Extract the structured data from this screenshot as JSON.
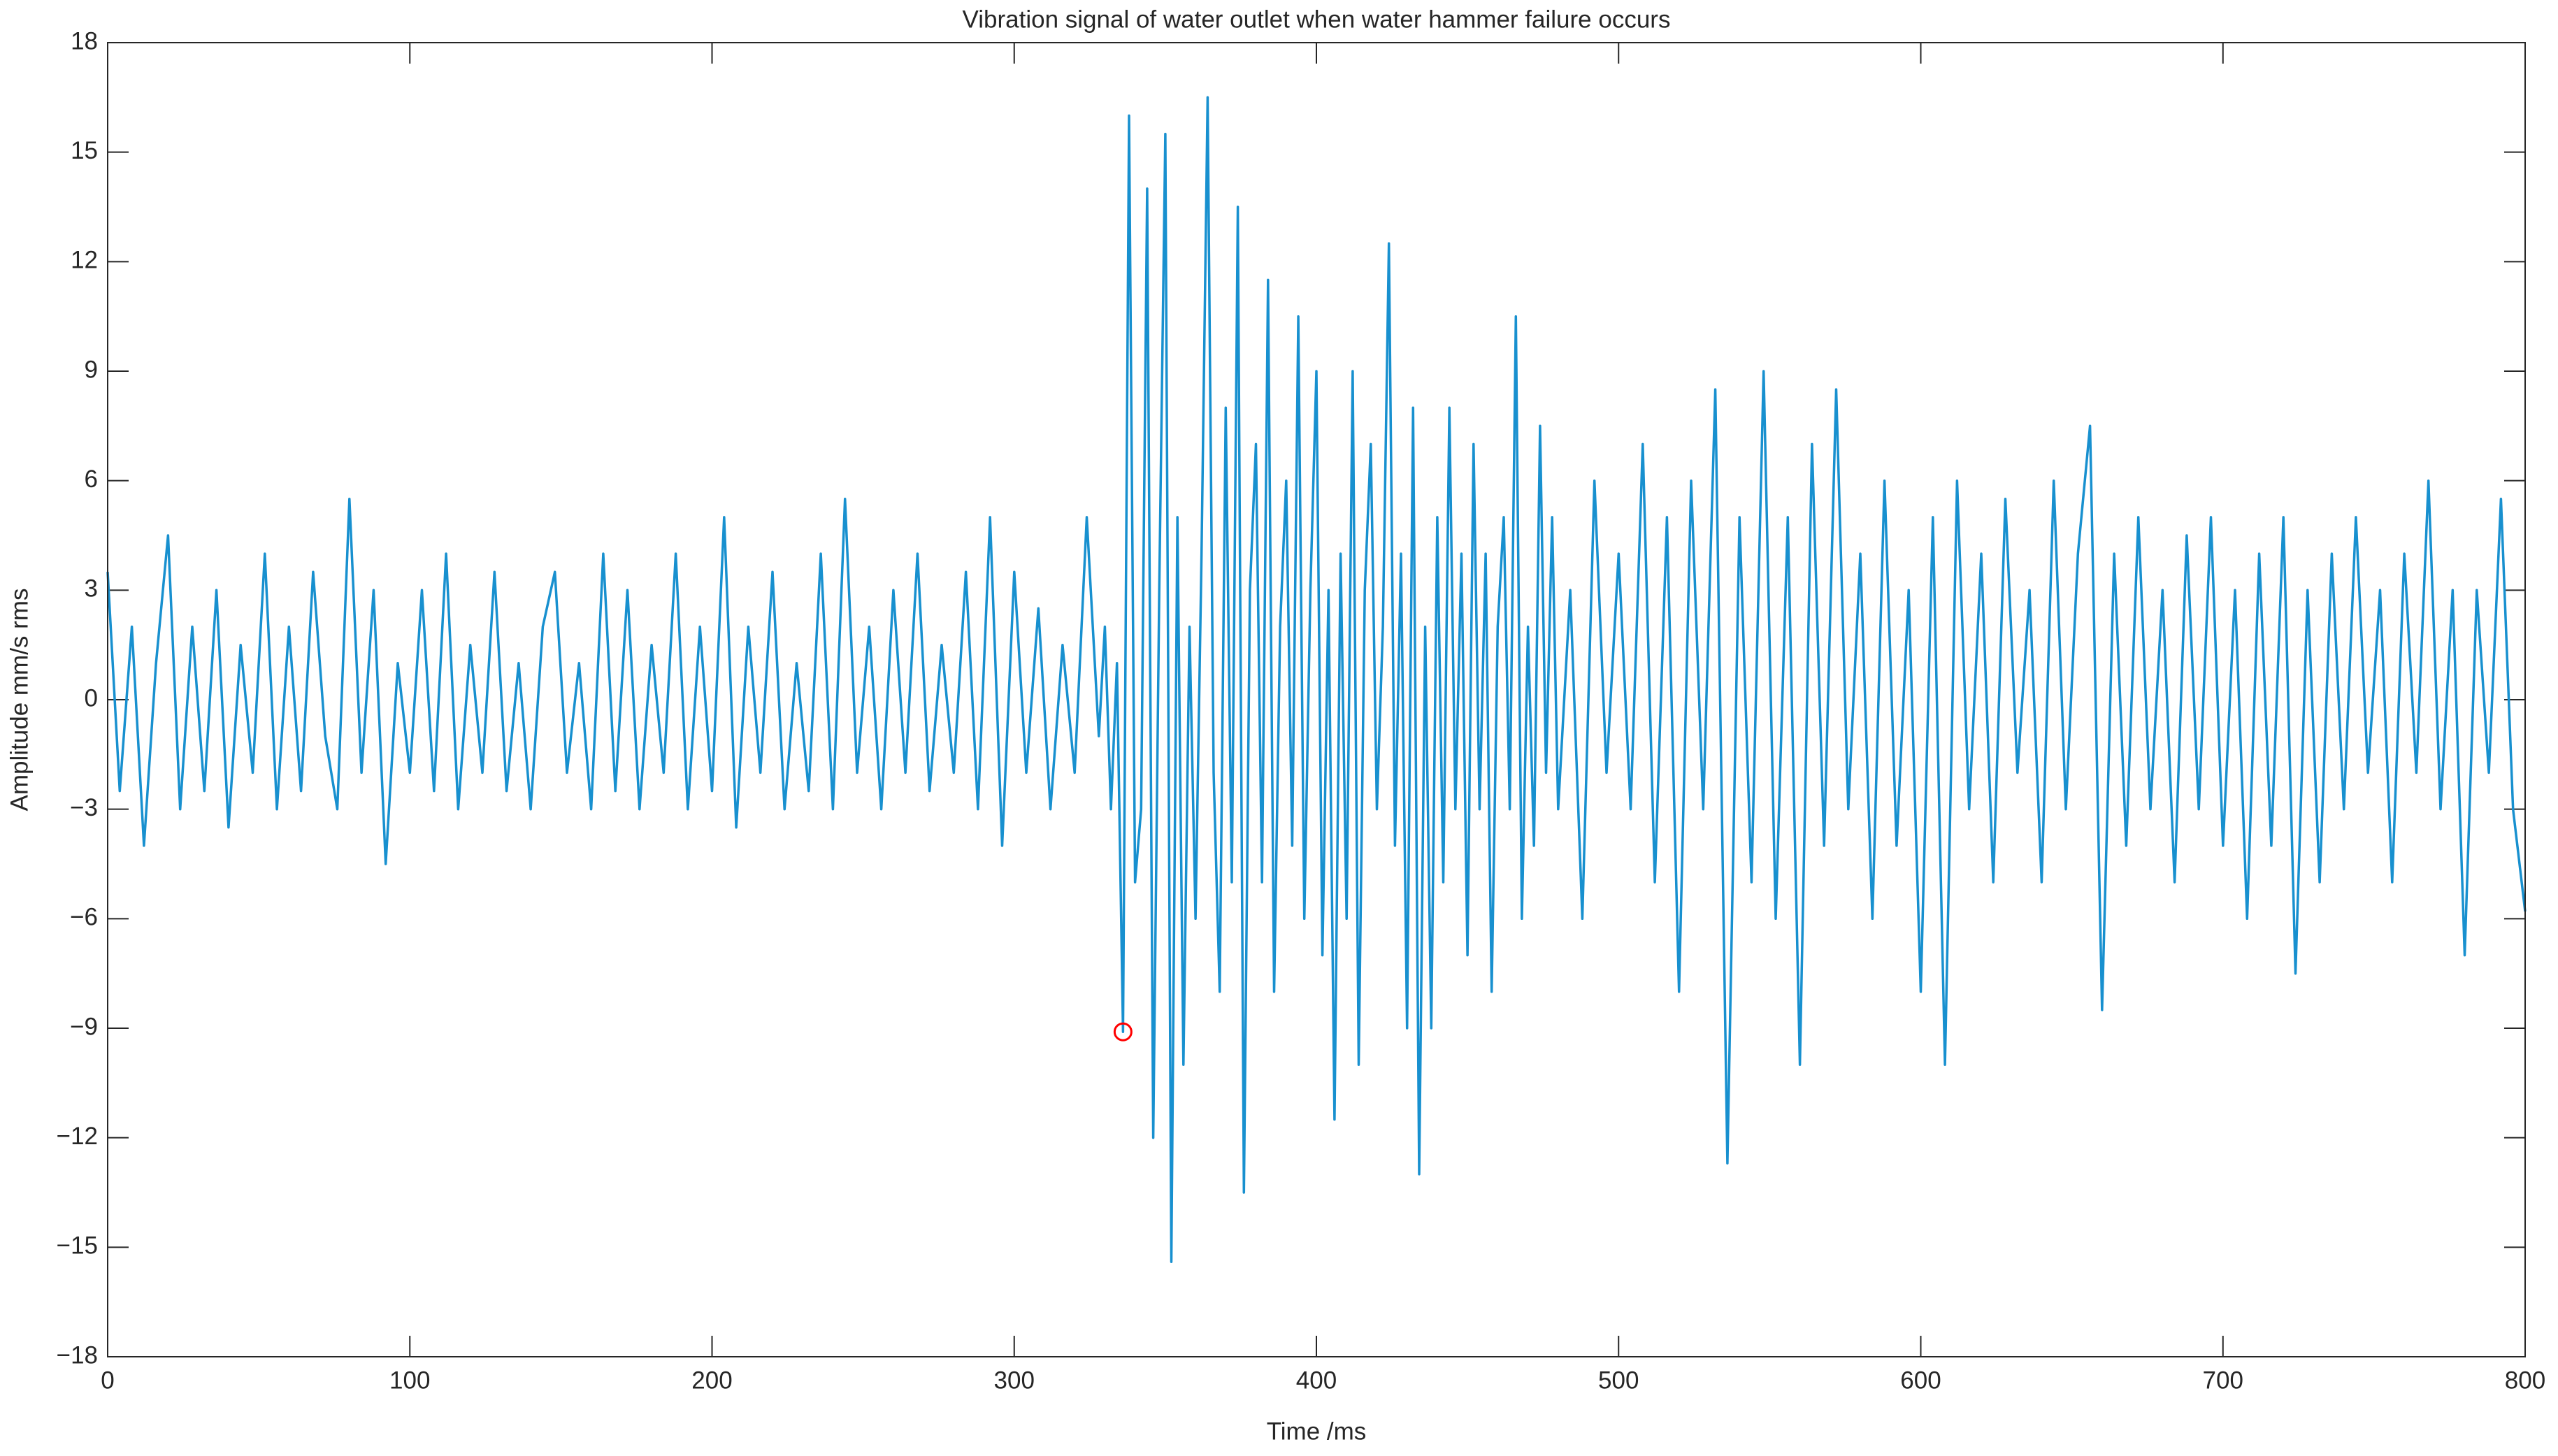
{
  "chart_data": {
    "type": "line",
    "title": "Vibration signal of water outlet when water hammer failure occurs",
    "xlabel": "Time /ms",
    "ylabel": "Amplitude mm/s rms",
    "xlim": [
      0,
      800
    ],
    "ylim": [
      -18,
      18
    ],
    "xticks": [
      0,
      100,
      200,
      300,
      400,
      500,
      600,
      700,
      800
    ],
    "yticks": [
      {
        "value": -18,
        "label": "−18"
      },
      {
        "value": -15,
        "label": "−15"
      },
      {
        "value": -12,
        "label": "−12"
      },
      {
        "value": -9,
        "label": "−9"
      },
      {
        "value": -6,
        "label": "−6"
      },
      {
        "value": -3,
        "label": "−3"
      },
      0,
      3,
      6,
      9,
      12,
      15,
      18
    ],
    "grid": false,
    "x": [
      0,
      4,
      8,
      12,
      16,
      20,
      24,
      28,
      32,
      36,
      40,
      44,
      48,
      52,
      56,
      60,
      64,
      68,
      72,
      76,
      80,
      84,
      88,
      92,
      96,
      100,
      104,
      108,
      112,
      116,
      120,
      124,
      128,
      132,
      136,
      140,
      144,
      148,
      152,
      156,
      160,
      164,
      168,
      172,
      176,
      180,
      184,
      188,
      192,
      196,
      200,
      204,
      208,
      212,
      216,
      220,
      224,
      228,
      232,
      236,
      240,
      244,
      248,
      252,
      256,
      260,
      264,
      268,
      272,
      276,
      280,
      284,
      288,
      292,
      296,
      300,
      304,
      308,
      312,
      316,
      320,
      324,
      328,
      330,
      332,
      334,
      336,
      338,
      340,
      342,
      344,
      346,
      348,
      350,
      352,
      354,
      356,
      358,
      360,
      362,
      364,
      366,
      368,
      370,
      372,
      374,
      376,
      378,
      380,
      382,
      384,
      386,
      388,
      390,
      392,
      394,
      396,
      398,
      400,
      402,
      404,
      406,
      408,
      410,
      412,
      414,
      416,
      418,
      420,
      422,
      424,
      426,
      428,
      430,
      432,
      434,
      436,
      438,
      440,
      442,
      444,
      446,
      448,
      450,
      452,
      454,
      456,
      458,
      460,
      462,
      464,
      466,
      468,
      470,
      472,
      474,
      476,
      478,
      480,
      484,
      488,
      492,
      496,
      500,
      504,
      508,
      512,
      516,
      520,
      524,
      528,
      532,
      536,
      540,
      544,
      548,
      552,
      556,
      560,
      564,
      568,
      572,
      576,
      580,
      584,
      588,
      592,
      596,
      600,
      604,
      608,
      612,
      616,
      620,
      624,
      628,
      632,
      636,
      640,
      644,
      648,
      652,
      656,
      660,
      664,
      668,
      672,
      676,
      680,
      684,
      688,
      692,
      696,
      700,
      704,
      708,
      712,
      716,
      720,
      724,
      728,
      732,
      736,
      740,
      744,
      748,
      752,
      756,
      760,
      764,
      768,
      772,
      776,
      780,
      784,
      788,
      792,
      796,
      800
    ],
    "series": [
      {
        "name": "Vibration signal",
        "color": "#1890cf",
        "values": [
          3.5,
          -2.5,
          2,
          -4,
          1,
          4.5,
          -3,
          2,
          -2.5,
          3,
          -3.5,
          1.5,
          -2,
          4,
          -3,
          2,
          -2.5,
          3.5,
          -1,
          -3,
          5.5,
          -2,
          3,
          -4.5,
          1,
          -2,
          3,
          -2.5,
          4,
          -3,
          1.5,
          -2,
          3.5,
          -2.5,
          1,
          -3,
          2,
          3.5,
          -2,
          1,
          -3,
          4,
          -2.5,
          3,
          -3,
          1.5,
          -2,
          4,
          -3,
          2,
          -2.5,
          5,
          -3.5,
          2,
          -2,
          3.5,
          -3,
          1,
          -2.5,
          4,
          -3,
          5.5,
          -2,
          2,
          -3,
          3,
          -2,
          4,
          -2.5,
          1.5,
          -2,
          3.5,
          -3,
          5,
          -4,
          3.5,
          -2,
          2.5,
          -3,
          1.5,
          -2,
          5,
          -1,
          2,
          -3,
          1,
          -9.1,
          16,
          -5,
          -3,
          14,
          -12,
          3,
          15.5,
          -15.4,
          5,
          -10,
          2,
          -6,
          4,
          16.5,
          -2,
          -8,
          8,
          -5,
          13.5,
          -13.5,
          3,
          7,
          -5,
          11.5,
          -8,
          2,
          6,
          -4,
          10.5,
          -6,
          3,
          9,
          -7,
          3,
          -11.5,
          4,
          -6,
          9,
          -10,
          3,
          7,
          -3,
          2,
          12.5,
          -4,
          4,
          -9,
          8,
          -13,
          2,
          -9,
          5,
          -5,
          8,
          -3,
          4,
          -7,
          7,
          -3,
          4,
          -8,
          2,
          5,
          -3,
          10.5,
          -6,
          2,
          -4,
          7.5,
          -2,
          5,
          -3,
          3,
          -6,
          6,
          -2,
          4,
          -3,
          7,
          -5,
          5,
          -8,
          6,
          -3,
          8.5,
          -12.7,
          5,
          -5,
          9,
          -6,
          5,
          -10,
          7,
          -4,
          8.5,
          -3,
          4,
          -6,
          6,
          -4,
          3,
          -8,
          5,
          -10,
          6,
          -3,
          4,
          -5,
          5.5,
          -2,
          3,
          -5,
          6,
          -3,
          4,
          7.5,
          -8.5,
          4,
          -4,
          5,
          -3,
          3,
          -5,
          4.5,
          -3,
          5,
          -4,
          3,
          -6,
          4,
          -4,
          5,
          -7.5,
          3,
          -5,
          4,
          -3,
          5,
          -2,
          3,
          -5,
          4,
          -2,
          6,
          -3,
          3,
          -7,
          3,
          -2,
          5.5,
          -3,
          -5.8
        ]
      }
    ],
    "markers": [
      {
        "x": 336,
        "y": -9.1,
        "color": "#ff0000"
      }
    ]
  }
}
